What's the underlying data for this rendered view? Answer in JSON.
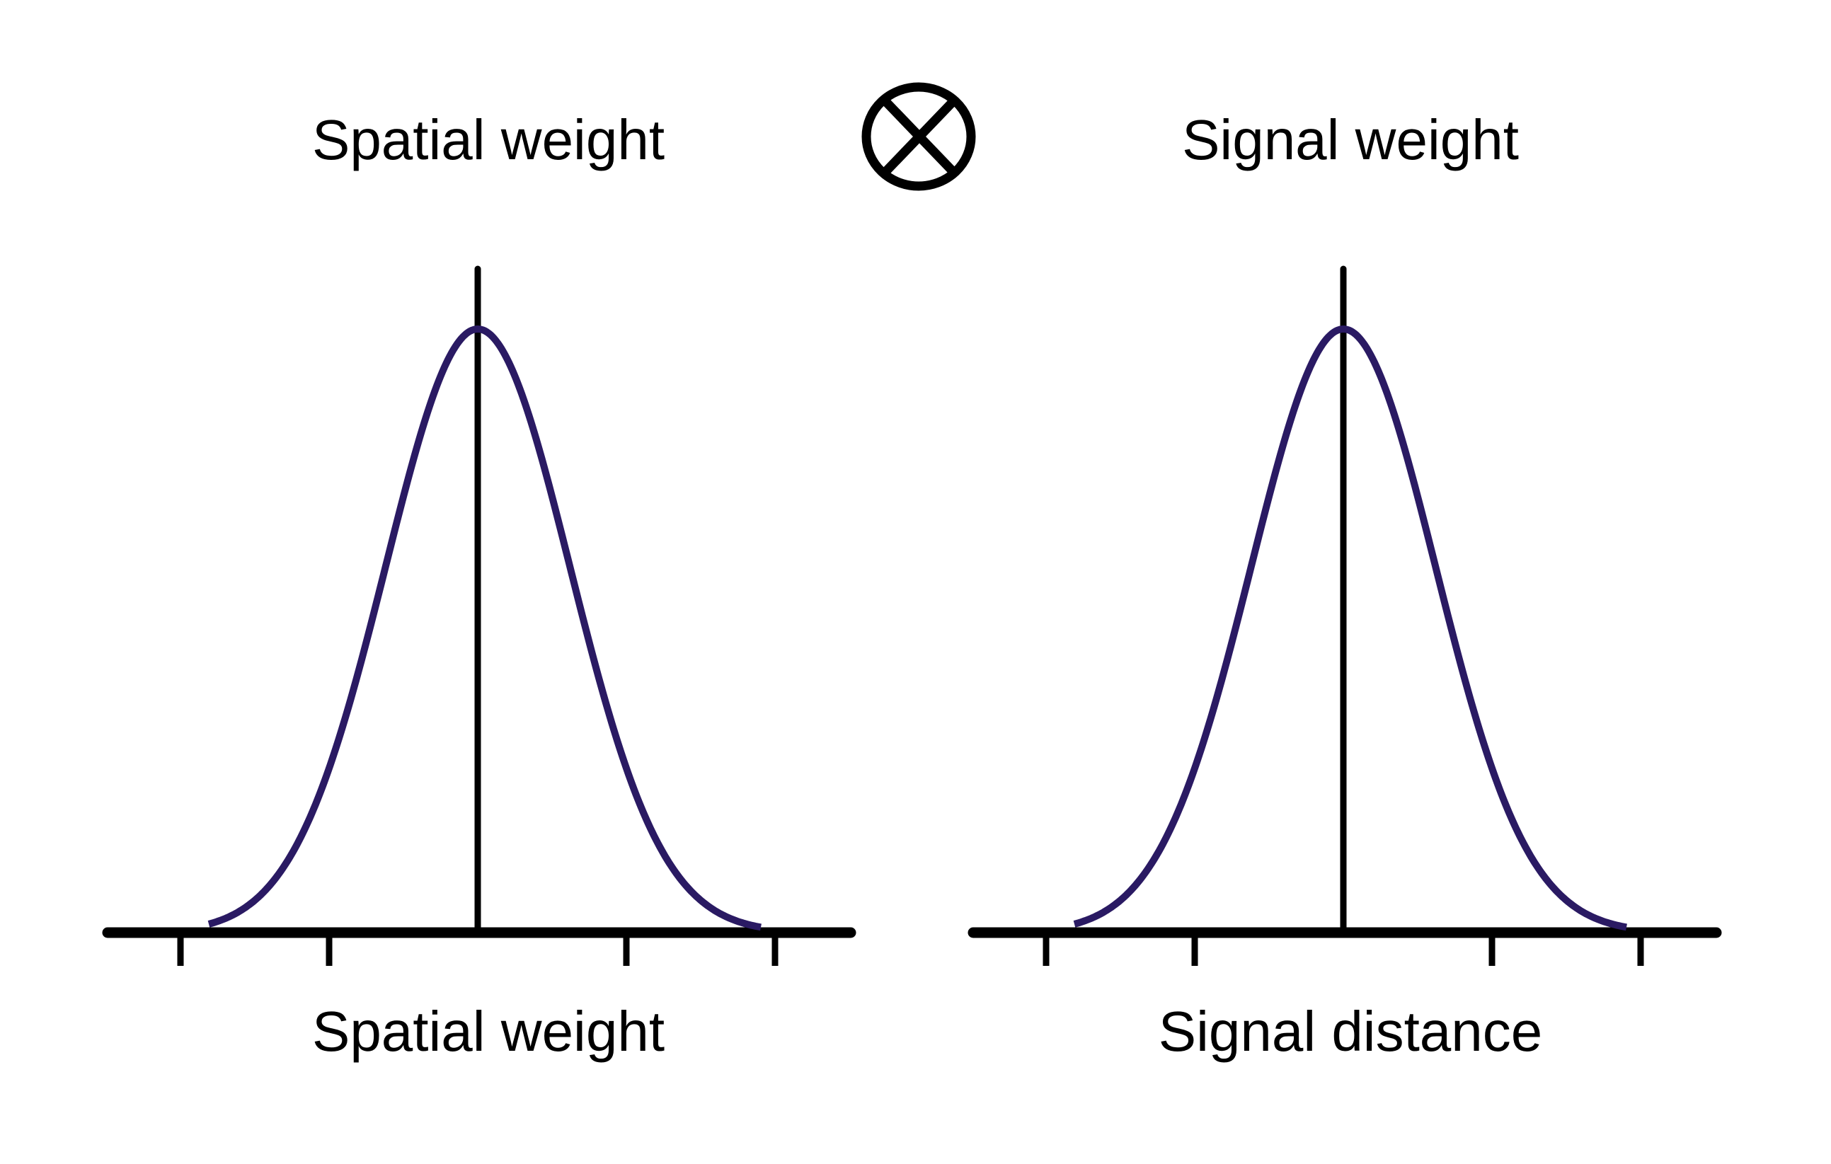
{
  "colors": {
    "curve": "#2a1a63",
    "axis": "#000000",
    "background": "#ffffff"
  },
  "operator": {
    "icon": "circled-times-icon",
    "meaning": "product"
  },
  "panels": [
    {
      "id": "spatial",
      "top_label": "Spatial weight",
      "bottom_label": "Spatial weight",
      "curve": "gaussian",
      "x_ticks": [
        -2,
        -1,
        1,
        2
      ],
      "x_range": [
        -2.5,
        2.5
      ]
    },
    {
      "id": "signal",
      "top_label": "Signal weight",
      "bottom_label": "Signal distance",
      "curve": "gaussian",
      "x_ticks": [
        -2,
        -1,
        1,
        2
      ],
      "x_range": [
        -2.5,
        2.5
      ]
    }
  ]
}
